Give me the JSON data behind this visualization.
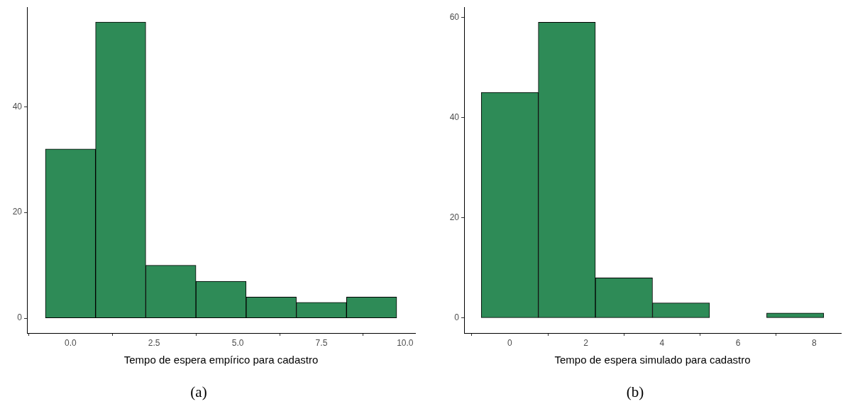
{
  "chart_data": [
    {
      "type": "histogram",
      "xlabel": "Tempo de espera empírico para cadastro",
      "bins": [
        -0.75,
        0.75,
        2.25,
        3.75,
        5.25,
        6.75,
        8.25,
        9.75
      ],
      "values": [
        32,
        56,
        10,
        7,
        4,
        3,
        4
      ],
      "color": "#2e8b57",
      "xlim": [
        -1.3,
        10.3
      ],
      "xticks": [
        {
          "value": 0,
          "label": "0.0"
        },
        {
          "value": 2.5,
          "label": "2.5"
        },
        {
          "value": 5,
          "label": "5.0"
        },
        {
          "value": 7.5,
          "label": "7.5"
        },
        {
          "value": 10,
          "label": "10.0"
        }
      ],
      "ylim": [
        -2.8,
        58.8
      ],
      "yticks": [
        0,
        20,
        40
      ],
      "annotations": [
        "(a)"
      ]
    },
    {
      "type": "histogram",
      "xlabel": "Tempo de espera simulado para cadastro",
      "bins": [
        -0.75,
        0.75,
        2.25,
        3.75,
        5.25,
        6.75,
        8.25
      ],
      "values": [
        45,
        59,
        8,
        3,
        0,
        1
      ],
      "color": "#2e8b57",
      "xlim": [
        -1.2,
        8.7
      ],
      "xticks": [
        0,
        2,
        4,
        6,
        8
      ],
      "ylim": [
        -3,
        62
      ],
      "yticks": [
        0,
        20,
        40,
        60
      ],
      "annotations": [
        "(b)"
      ]
    }
  ]
}
